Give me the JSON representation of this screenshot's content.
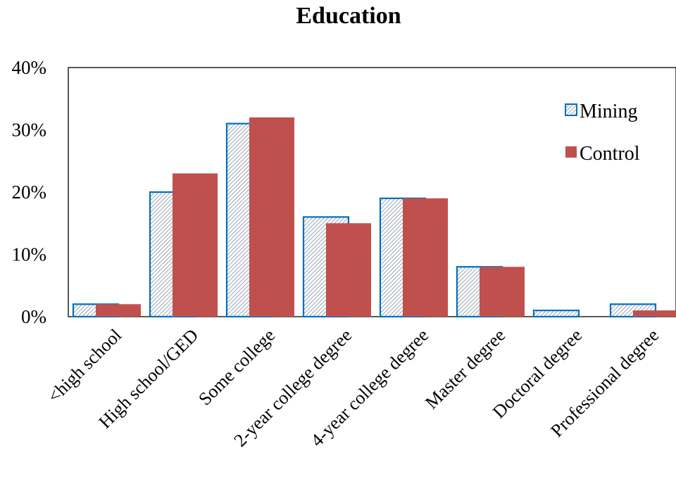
{
  "chart_data": {
    "type": "bar",
    "title": "Education",
    "xlabel": "",
    "ylabel": "",
    "ylim": [
      0,
      0.4
    ],
    "yticks": [
      "0%",
      "10%",
      "20%",
      "30%",
      "40%"
    ],
    "categories": [
      "<high school",
      "High school/GED",
      "Some college",
      "2-year college degree",
      "4-year college degree",
      "Master degree",
      "Doctoral degree",
      "Professional degree"
    ],
    "series": [
      {
        "name": "Mining",
        "values": [
          0.02,
          0.2,
          0.31,
          0.16,
          0.19,
          0.08,
          0.01,
          0.02
        ],
        "color": "#0070C0",
        "fill": "hatched"
      },
      {
        "name": "Control",
        "values": [
          0.02,
          0.23,
          0.32,
          0.15,
          0.19,
          0.08,
          0.0,
          0.01
        ],
        "color": "#C0504D",
        "fill": "solid"
      }
    ],
    "legend_position": "top-right",
    "grid": false
  }
}
